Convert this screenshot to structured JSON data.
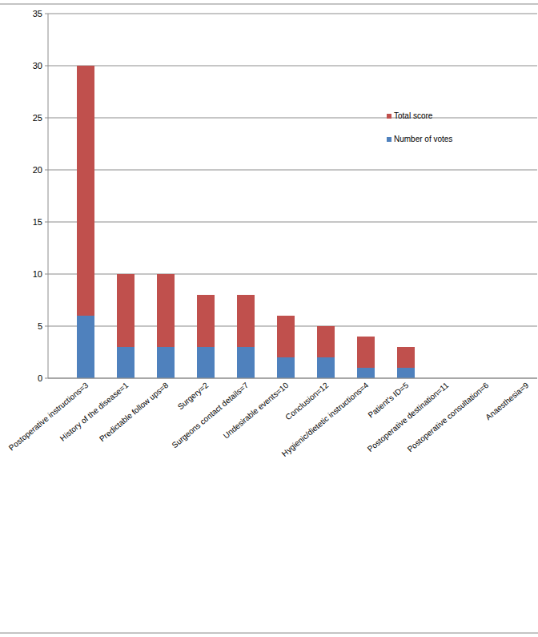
{
  "chart_data": {
    "type": "bar",
    "stacked": true,
    "grid": true,
    "legend": "right",
    "categories": [
      "Postoperative instructions=3",
      "History of the disease=1",
      "Predictable follow ups=8",
      "Surgery=2",
      "Surgeons contact details=7",
      "Undesirable events=10",
      "Conclusion=12",
      "Hygienic/dietetic instructions=4",
      "Patient's ID=5",
      "Postoperative destination=11",
      "Postoperative consultation=6",
      "Anaesthesia=9"
    ],
    "series": [
      {
        "name": "Number of votes",
        "color": "#4f81bd",
        "values": [
          6,
          3,
          3,
          3,
          3,
          2,
          2,
          1,
          1,
          0,
          0,
          0
        ]
      },
      {
        "name": "Total score",
        "color": "#c0504d",
        "values": [
          24,
          7,
          7,
          5,
          5,
          4,
          3,
          3,
          2,
          0,
          0,
          0
        ]
      }
    ],
    "ylim": [
      0,
      35
    ],
    "yticks": [
      0,
      5,
      10,
      15,
      20,
      25,
      30,
      35
    ]
  }
}
